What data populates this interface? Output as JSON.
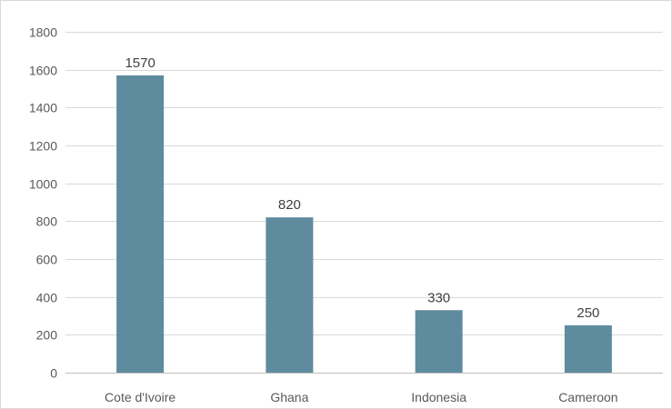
{
  "chart_data": {
    "type": "bar",
    "title": "",
    "xlabel": "",
    "ylabel": "",
    "categories": [
      "Cote d'Ivoire",
      "Ghana",
      "Indonesia",
      "Cameroon"
    ],
    "values": [
      1570,
      820,
      330,
      250
    ],
    "data_labels": [
      "1570",
      "820",
      "330",
      "250"
    ],
    "ylim": [
      0,
      1800
    ],
    "yticks": [
      0,
      200,
      400,
      600,
      800,
      1000,
      1200,
      1400,
      1600,
      1800
    ],
    "ytick_labels": [
      "0",
      "200",
      "400",
      "600",
      "800",
      "1000",
      "1200",
      "1400",
      "1600",
      "1800"
    ],
    "grid": true,
    "legend": "none",
    "bar_color": "#5f8b9e"
  }
}
